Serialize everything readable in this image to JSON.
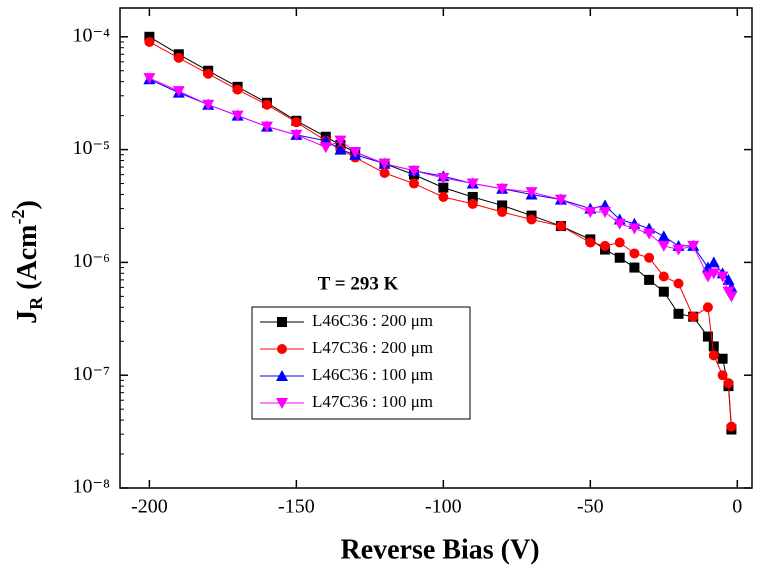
{
  "chart_data": {
    "type": "scatter",
    "x_label": "Reverse Bias (V)",
    "y_label": [
      "J",
      "R",
      " (Acm",
      "-2",
      ")"
    ],
    "annotation": "T = 293 K",
    "log_y": true,
    "legend": "lower center",
    "xlim": [
      -210,
      5
    ],
    "ylim": [
      1e-08,
      0.00018
    ],
    "xticks": [
      -200,
      -150,
      -100,
      -50,
      0
    ],
    "yticks": [
      {
        "value": 1e-08,
        "label": "10⁻⁸"
      },
      {
        "value": 1e-07,
        "label": "10⁻⁷"
      },
      {
        "value": 1e-06,
        "label": "10⁻⁶"
      },
      {
        "value": 1e-05,
        "label": "10⁻⁵"
      },
      {
        "value": 0.0001,
        "label": "10⁻⁴"
      }
    ],
    "x": [
      -200,
      -190,
      -180,
      -170,
      -160,
      -150,
      -140,
      -135,
      -130,
      -120,
      -110,
      -100,
      -90,
      -80,
      -70,
      -60,
      -50,
      -45,
      -40,
      -35,
      -30,
      -25,
      -20,
      -15,
      -10,
      -8,
      -5,
      -3,
      -2
    ],
    "series": [
      {
        "name": "L46C36 : 200 μm",
        "color": "#000000",
        "marker": "square",
        "values": [
          0.0001,
          7e-05,
          5e-05,
          3.6e-05,
          2.6e-05,
          1.8e-05,
          1.3e-05,
          1.1e-05,
          9.5e-06,
          7.5e-06,
          6e-06,
          4.6e-06,
          3.8e-06,
          3.2e-06,
          2.6e-06,
          2.1e-06,
          1.6e-06,
          1.3e-06,
          1.1e-06,
          9e-07,
          7e-07,
          5.5e-07,
          3.5e-07,
          3.3e-07,
          2.2e-07,
          1.8e-07,
          1.4e-07,
          8e-08,
          3.3e-08
        ]
      },
      {
        "name": "L47C36 : 200 μm",
        "color": "#ff0000",
        "marker": "circle",
        "values": [
          9e-05,
          6.5e-05,
          4.7e-05,
          3.4e-05,
          2.5e-05,
          1.75e-05,
          1.2e-05,
          1e-05,
          8.5e-06,
          6.2e-06,
          5e-06,
          3.8e-06,
          3.3e-06,
          2.8e-06,
          2.4e-06,
          2.1e-06,
          1.5e-06,
          1.4e-06,
          1.5e-06,
          1.2e-06,
          1.1e-06,
          7.5e-07,
          6.5e-07,
          3.3e-07,
          4e-07,
          1.5e-07,
          1e-07,
          8.5e-08,
          3.5e-08
        ]
      },
      {
        "name": "L46C36 : 100 μm",
        "color": "#0000ff",
        "marker": "triangle-up",
        "values": [
          4.2e-05,
          3.2e-05,
          2.5e-05,
          2e-05,
          1.6e-05,
          1.35e-05,
          1.2e-05,
          1e-05,
          9e-06,
          7.5e-06,
          6.5e-06,
          5.8e-06,
          5e-06,
          4.5e-06,
          4e-06,
          3.6e-06,
          3e-06,
          3.2e-06,
          2.4e-06,
          2.2e-06,
          2e-06,
          1.7e-06,
          1.4e-06,
          1.4e-06,
          9e-07,
          1e-06,
          8e-07,
          7e-07,
          6e-07
        ]
      },
      {
        "name": "L47C36 : 100 μm",
        "color": "#ff00ff",
        "marker": "triangle-down",
        "values": [
          4.3e-05,
          3.3e-05,
          2.5e-05,
          2e-05,
          1.6e-05,
          1.35e-05,
          1.05e-05,
          1.2e-05,
          9.5e-06,
          7.5e-06,
          6.5e-06,
          5.6e-06,
          5e-06,
          4.5e-06,
          4.2e-06,
          3.6e-06,
          2.8e-06,
          2.8e-06,
          2.2e-06,
          2e-06,
          1.8e-06,
          1.4e-06,
          1.3e-06,
          1.4e-06,
          7.5e-07,
          8e-07,
          7.5e-07,
          5.5e-07,
          5e-07
        ]
      }
    ]
  }
}
